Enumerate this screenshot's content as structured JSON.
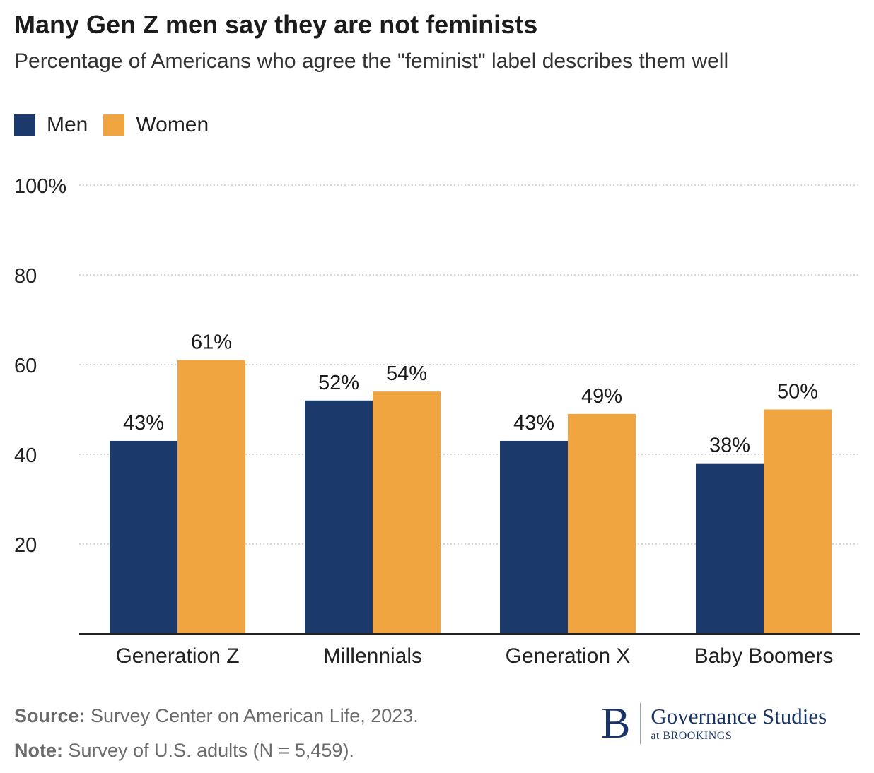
{
  "header": {
    "title": "Many Gen Z men say they are not feminists",
    "subtitle": "Percentage of Americans who agree the \"feminist\" label describes them well"
  },
  "colors": {
    "men": "#1b3a6b",
    "women": "#f0a541",
    "grid": "#c8c8c8",
    "axis": "#222222"
  },
  "chart_data": {
    "type": "bar",
    "categories": [
      "Generation Z",
      "Millennials",
      "Generation X",
      "Baby Boomers"
    ],
    "series": [
      {
        "name": "Men",
        "values": [
          43,
          52,
          43,
          38
        ],
        "labels": [
          "43%",
          "52%",
          "43%",
          "38%"
        ]
      },
      {
        "name": "Women",
        "values": [
          61,
          54,
          49,
          50
        ],
        "labels": [
          "61%",
          "54%",
          "49%",
          "50%"
        ]
      }
    ],
    "ylim": [
      0,
      100
    ],
    "yticks": [
      20,
      40,
      60,
      80,
      100
    ],
    "ytick_labels": [
      "20",
      "40",
      "60",
      "80",
      "100%"
    ],
    "grid": true,
    "legend": "top-left",
    "xlabel": "",
    "ylabel": ""
  },
  "footer": {
    "source_label": "Source:",
    "source_text": " Survey Center on American Life, 2023.",
    "note_label": "Note:",
    "note_text": " Survey of U.S. adults (N = 5,459)."
  },
  "logo": {
    "letter": "B",
    "line1": "Governance Studies",
    "line2": "at BROOKINGS"
  }
}
